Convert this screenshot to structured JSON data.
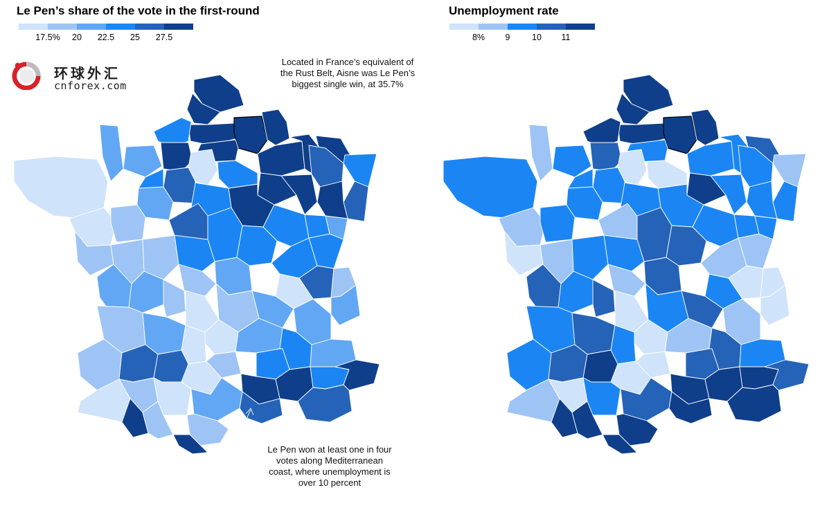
{
  "left_panel": {
    "title": "Le Pen’s share of the vote in the first-round",
    "legend_colors": [
      "#cfe3fa",
      "#9ec4f5",
      "#62a7f4",
      "#1b86f3",
      "#2563b8",
      "#0f3f8a"
    ],
    "legend_ticks": [
      "17.5%",
      "20",
      "22.5",
      "25",
      "27.5"
    ]
  },
  "right_panel": {
    "title": "Unemployment rate",
    "legend_colors": [
      "#cfe3fa",
      "#9ec4f5",
      "#1b86f3",
      "#2563b8",
      "#0f3f8a"
    ],
    "legend_ticks": [
      "8%",
      "9",
      "10",
      "11"
    ]
  },
  "annotations": {
    "aisne": "Located in France’s equivalent of the Rust Belt, Aisne was Le Pen’s biggest single win, at 35.7%",
    "mediterranean": "Le Pen won at least one in four votes along Mediterranean coast, where unemployment is over 10 percent"
  },
  "logo": {
    "chinese": "环球外汇",
    "latin": "cnforex.com"
  },
  "maps": {
    "left_regions": [
      {
        "name": "Nord",
        "color": "#0f3f8a"
      },
      {
        "name": "Pas-de-Calais",
        "color": "#0f3f8a"
      },
      {
        "name": "Somme",
        "color": "#0f3f8a"
      },
      {
        "name": "Aisne",
        "color": "#0f3f8a",
        "highlight": true
      },
      {
        "name": "Ardennes",
        "color": "#0f3f8a"
      },
      {
        "name": "Oise",
        "color": "#0f3f8a"
      },
      {
        "name": "Seine-Maritime",
        "color": "#1b86f3"
      },
      {
        "name": "Eure",
        "color": "#0f3f8a"
      },
      {
        "name": "Marne",
        "color": "#0f3f8a"
      },
      {
        "name": "Meuse",
        "color": "#0f3f8a"
      },
      {
        "name": "Moselle",
        "color": "#0f3f8a"
      },
      {
        "name": "Meurthe-et-Moselle",
        "color": "#2563b8"
      },
      {
        "name": "Bas-Rhin",
        "color": "#1b86f3"
      },
      {
        "name": "Haut-Rhin",
        "color": "#2563b8"
      },
      {
        "name": "Vosges",
        "color": "#0f3f8a"
      },
      {
        "name": "Aube",
        "color": "#0f3f8a"
      },
      {
        "name": "Haute-Marne",
        "color": "#0f3f8a"
      },
      {
        "name": "Yonne",
        "color": "#0f3f8a"
      },
      {
        "name": "Paris",
        "color": "#cfe3fa"
      },
      {
        "name": "Seine-et-Marne",
        "color": "#1b86f3"
      },
      {
        "name": "Eure-et-Loir",
        "color": "#2563b8"
      },
      {
        "name": "Loiret",
        "color": "#1b86f3"
      },
      {
        "name": "Calvados",
        "color": "#62a7f4"
      },
      {
        "name": "Manche",
        "color": "#62a7f4"
      },
      {
        "name": "Orne",
        "color": "#1b86f3"
      },
      {
        "name": "Sarthe",
        "color": "#62a7f4"
      },
      {
        "name": "Bretagne",
        "color": "#cfe3fa"
      },
      {
        "name": "Loire-Atlantique",
        "color": "#cfe3fa"
      },
      {
        "name": "Maine-et-Loire",
        "color": "#9ec4f5"
      },
      {
        "name": "Loir-et-Cher",
        "color": "#2563b8"
      },
      {
        "name": "Cher",
        "color": "#1b86f3"
      },
      {
        "name": "Nievre",
        "color": "#1b86f3"
      },
      {
        "name": "Cote-d-Or",
        "color": "#1b86f3"
      },
      {
        "name": "Haute-Saone",
        "color": "#1b86f3"
      },
      {
        "name": "Doubs",
        "color": "#62a7f4"
      },
      {
        "name": "Jura",
        "color": "#1b86f3"
      },
      {
        "name": "Saone-et-Loire",
        "color": "#1b86f3"
      },
      {
        "name": "Ain",
        "color": "#2563b8"
      },
      {
        "name": "Haute-Savoie",
        "color": "#9ec4f5"
      },
      {
        "name": "Savoie",
        "color": "#62a7f4"
      },
      {
        "name": "Rhone",
        "color": "#cfe3fa"
      },
      {
        "name": "Allier",
        "color": "#62a7f4"
      },
      {
        "name": "Vendee",
        "color": "#9ec4f5"
      },
      {
        "name": "Deux-Sevres",
        "color": "#9ec4f5"
      },
      {
        "name": "Vienne",
        "color": "#9ec4f5"
      },
      {
        "name": "Indre",
        "color": "#1b86f3"
      },
      {
        "name": "Creuse",
        "color": "#9ec4f5"
      },
      {
        "name": "Puy-de-Dome",
        "color": "#9ec4f5"
      },
      {
        "name": "Loire",
        "color": "#62a7f4"
      },
      {
        "name": "Isere",
        "color": "#62a7f4"
      },
      {
        "name": "Charente-Maritime",
        "color": "#62a7f4"
      },
      {
        "name": "Charente",
        "color": "#62a7f4"
      },
      {
        "name": "Haute-Vienne",
        "color": "#9ec4f5"
      },
      {
        "name": "Correze",
        "color": "#cfe3fa"
      },
      {
        "name": "Cantal",
        "color": "#cfe3fa"
      },
      {
        "name": "Haute-Loire",
        "color": "#62a7f4"
      },
      {
        "name": "Drome",
        "color": "#1b86f3"
      },
      {
        "name": "Hautes-Alpes",
        "color": "#62a7f4"
      },
      {
        "name": "Gironde",
        "color": "#9ec4f5"
      },
      {
        "name": "Dordogne",
        "color": "#62a7f4"
      },
      {
        "name": "Lot",
        "color": "#cfe3fa"
      },
      {
        "name": "Lozere",
        "color": "#9ec4f5"
      },
      {
        "name": "Ardeche",
        "color": "#1b86f3"
      },
      {
        "name": "Landes",
        "color": "#9ec4f5"
      },
      {
        "name": "Lot-et-Garonne",
        "color": "#2563b8"
      },
      {
        "name": "Tarn-et-Garonne",
        "color": "#2563b8"
      },
      {
        "name": "Aveyron",
        "color": "#cfe3fa"
      },
      {
        "name": "Gard",
        "color": "#0f3f8a"
      },
      {
        "name": "Vaucluse",
        "color": "#0f3f8a"
      },
      {
        "name": "Alpes-de-Haute-Provence",
        "color": "#1b86f3"
      },
      {
        "name": "Alpes-Maritimes",
        "color": "#0f3f8a"
      },
      {
        "name": "Pyrenees-Atlantiques",
        "color": "#cfe3fa"
      },
      {
        "name": "Gers",
        "color": "#9ec4f5"
      },
      {
        "name": "Haute-Garonne",
        "color": "#cfe3fa"
      },
      {
        "name": "Tarn",
        "color": "#62a7f4"
      },
      {
        "name": "Herault",
        "color": "#2563b8"
      },
      {
        "name": "Bouches-du-Rhone",
        "color": "#2563b8"
      },
      {
        "name": "Var",
        "color": "#0f3f8a"
      },
      {
        "name": "Hautes-Pyrenees",
        "color": "#9ec4f5"
      },
      {
        "name": "Ariege",
        "color": "#9ec4f5"
      },
      {
        "name": "Aude",
        "color": "#0f3f8a"
      },
      {
        "name": "Pyrenees-Orientales",
        "color": "#0f3f8a"
      }
    ],
    "right_regions": [
      {
        "name": "Nord",
        "color": "#0f3f8a"
      },
      {
        "name": "Pas-de-Calais",
        "color": "#0f3f8a"
      },
      {
        "name": "Somme",
        "color": "#0f3f8a"
      },
      {
        "name": "Aisne",
        "color": "#0f3f8a",
        "highlight": true
      },
      {
        "name": "Ardennes",
        "color": "#0f3f8a"
      },
      {
        "name": "Oise",
        "color": "#1b86f3"
      },
      {
        "name": "Seine-Maritime",
        "color": "#0f3f8a"
      },
      {
        "name": "Eure",
        "color": "#2563b8"
      },
      {
        "name": "Marne",
        "color": "#1b86f3"
      },
      {
        "name": "Meuse",
        "color": "#1b86f3"
      },
      {
        "name": "Moselle",
        "color": "#2563b8"
      },
      {
        "name": "Meurthe-et-Moselle",
        "color": "#1b86f3"
      },
      {
        "name": "Bas-Rhin",
        "color": "#9ec4f5"
      },
      {
        "name": "Haut-Rhin",
        "color": "#1b86f3"
      },
      {
        "name": "Vosges",
        "color": "#1b86f3"
      },
      {
        "name": "Aube",
        "color": "#0f3f8a"
      },
      {
        "name": "Haute-Marne",
        "color": "#1b86f3"
      },
      {
        "name": "Yonne",
        "color": "#1b86f3"
      },
      {
        "name": "Paris",
        "color": "#cfe3fa"
      },
      {
        "name": "Seine-et-Marne",
        "color": "#cfe3fa"
      },
      {
        "name": "Eure-et-Loir",
        "color": "#1b86f3"
      },
      {
        "name": "Loiret",
        "color": "#1b86f3"
      },
      {
        "name": "Calvados",
        "color": "#1b86f3"
      },
      {
        "name": "Manche",
        "color": "#9ec4f5"
      },
      {
        "name": "Orne",
        "color": "#1b86f3"
      },
      {
        "name": "Sarthe",
        "color": "#1b86f3"
      },
      {
        "name": "Bretagne",
        "color": "#1b86f3"
      },
      {
        "name": "Loire-Atlantique",
        "color": "#9ec4f5"
      },
      {
        "name": "Maine-et-Loire",
        "color": "#1b86f3"
      },
      {
        "name": "Loir-et-Cher",
        "color": "#9ec4f5"
      },
      {
        "name": "Cher",
        "color": "#2563b8"
      },
      {
        "name": "Nievre",
        "color": "#2563b8"
      },
      {
        "name": "Cote-d-Or",
        "color": "#1b86f3"
      },
      {
        "name": "Haute-Saone",
        "color": "#1b86f3"
      },
      {
        "name": "Doubs",
        "color": "#1b86f3"
      },
      {
        "name": "Jura",
        "color": "#9ec4f5"
      },
      {
        "name": "Saone-et-Loire",
        "color": "#9ec4f5"
      },
      {
        "name": "Ain",
        "color": "#cfe3fa"
      },
      {
        "name": "Haute-Savoie",
        "color": "#cfe3fa"
      },
      {
        "name": "Savoie",
        "color": "#cfe3fa"
      },
      {
        "name": "Rhone",
        "color": "#1b86f3"
      },
      {
        "name": "Allier",
        "color": "#2563b8"
      },
      {
        "name": "Vendee",
        "color": "#cfe3fa"
      },
      {
        "name": "Deux-Sevres",
        "color": "#9ec4f5"
      },
      {
        "name": "Vienne",
        "color": "#1b86f3"
      },
      {
        "name": "Indre",
        "color": "#1b86f3"
      },
      {
        "name": "Creuse",
        "color": "#9ec4f5"
      },
      {
        "name": "Puy-de-Dome",
        "color": "#1b86f3"
      },
      {
        "name": "Loire",
        "color": "#2563b8"
      },
      {
        "name": "Isere",
        "color": "#9ec4f5"
      },
      {
        "name": "Charente-Maritime",
        "color": "#2563b8"
      },
      {
        "name": "Charente",
        "color": "#1b86f3"
      },
      {
        "name": "Haute-Vienne",
        "color": "#2563b8"
      },
      {
        "name": "Correze",
        "color": "#cfe3fa"
      },
      {
        "name": "Cantal",
        "color": "#cfe3fa"
      },
      {
        "name": "Haute-Loire",
        "color": "#9ec4f5"
      },
      {
        "name": "Drome",
        "color": "#2563b8"
      },
      {
        "name": "Hautes-Alpes",
        "color": "#1b86f3"
      },
      {
        "name": "Gironde",
        "color": "#1b86f3"
      },
      {
        "name": "Dordogne",
        "color": "#2563b8"
      },
      {
        "name": "Lot",
        "color": "#1b86f3"
      },
      {
        "name": "Lozere",
        "color": "#cfe3fa"
      },
      {
        "name": "Ardeche",
        "color": "#2563b8"
      },
      {
        "name": "Landes",
        "color": "#1b86f3"
      },
      {
        "name": "Lot-et-Garonne",
        "color": "#2563b8"
      },
      {
        "name": "Tarn-et-Garonne",
        "color": "#0f3f8a"
      },
      {
        "name": "Aveyron",
        "color": "#cfe3fa"
      },
      {
        "name": "Gard",
        "color": "#0f3f8a"
      },
      {
        "name": "Vaucluse",
        "color": "#0f3f8a"
      },
      {
        "name": "Alpes-de-Haute-Provence",
        "color": "#0f3f8a"
      },
      {
        "name": "Alpes-Maritimes",
        "color": "#2563b8"
      },
      {
        "name": "Pyrenees-Atlantiques",
        "color": "#9ec4f5"
      },
      {
        "name": "Gers",
        "color": "#cfe3fa"
      },
      {
        "name": "Haute-Garonne",
        "color": "#1b86f3"
      },
      {
        "name": "Tarn",
        "color": "#2563b8"
      },
      {
        "name": "Herault",
        "color": "#0f3f8a"
      },
      {
        "name": "Bouches-du-Rhone",
        "color": "#0f3f8a"
      },
      {
        "name": "Var",
        "color": "#0f3f8a"
      },
      {
        "name": "Hautes-Pyrenees",
        "color": "#0f3f8a"
      },
      {
        "name": "Ariege",
        "color": "#0f3f8a"
      },
      {
        "name": "Aude",
        "color": "#0f3f8a"
      },
      {
        "name": "Pyrenees-Orientales",
        "color": "#0f3f8a"
      }
    ]
  }
}
